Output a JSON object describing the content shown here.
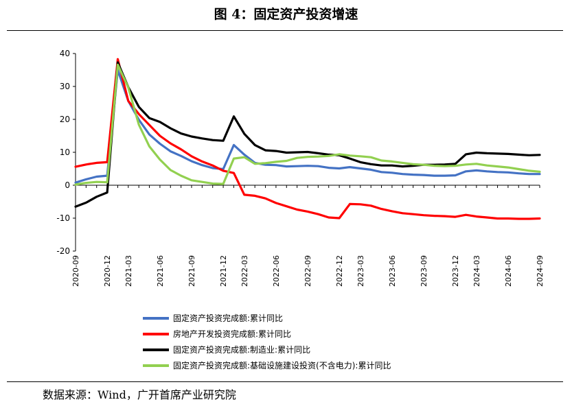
{
  "title": "图 4：固定资产投资增速",
  "source": "数据来源：Wind，广开首席产业研究院",
  "chart_data": {
    "type": "line",
    "title": "图 4：固定资产投资增速",
    "xlabel": "",
    "ylabel": "",
    "ylim": [
      -20,
      40
    ],
    "yticks": [
      -20,
      -10,
      0,
      10,
      20,
      30,
      40
    ],
    "grid": false,
    "legend_position": "bottom",
    "x": [
      "2020-09",
      "2020-10",
      "2020-11",
      "2020-12",
      "2021-02",
      "2021-03",
      "2021-04",
      "2021-05",
      "2021-06",
      "2021-07",
      "2021-08",
      "2021-09",
      "2021-10",
      "2021-11",
      "2021-12",
      "2022-02",
      "2022-03",
      "2022-04",
      "2022-05",
      "2022-06",
      "2022-07",
      "2022-08",
      "2022-09",
      "2022-10",
      "2022-11",
      "2022-12",
      "2023-02",
      "2023-03",
      "2023-04",
      "2023-05",
      "2023-06",
      "2023-07",
      "2023-08",
      "2023-09",
      "2023-10",
      "2023-11",
      "2023-12",
      "2024-02",
      "2024-03",
      "2024-04",
      "2024-05",
      "2024-06",
      "2024-07",
      "2024-08",
      "2024-09"
    ],
    "xtick_labels": [
      "2020-09",
      "2020-12",
      "2021-03",
      "2021-06",
      "2021-09",
      "2021-12",
      "2022-03",
      "2022-06",
      "2022-09",
      "2022-12",
      "2023-03",
      "2023-06",
      "2023-09",
      "2023-12",
      "2024-03",
      "2024-06",
      "2024-09"
    ],
    "series": [
      {
        "name": "固定资产投资完成额:累计同比",
        "color": "#4472C4",
        "values": [
          0.8,
          1.8,
          2.6,
          2.9,
          35.0,
          25.6,
          19.9,
          15.4,
          12.6,
          10.3,
          8.9,
          7.3,
          6.1,
          5.2,
          4.9,
          12.2,
          9.3,
          6.8,
          6.2,
          6.1,
          5.7,
          5.8,
          5.9,
          5.8,
          5.3,
          5.1,
          5.5,
          5.1,
          4.7,
          4.0,
          3.8,
          3.4,
          3.2,
          3.1,
          2.9,
          2.9,
          3.0,
          4.2,
          4.5,
          4.2,
          4.0,
          3.9,
          3.6,
          3.4,
          3.4
        ]
      },
      {
        "name": "房地产开发投资完成额:累计同比",
        "color": "#FF0000",
        "values": [
          5.6,
          6.3,
          6.8,
          7.0,
          38.3,
          25.6,
          21.6,
          18.3,
          15.0,
          12.7,
          10.9,
          8.8,
          7.2,
          6.0,
          4.4,
          3.7,
          -2.9,
          -3.2,
          -4.0,
          -5.4,
          -6.4,
          -7.4,
          -8.0,
          -8.8,
          -9.8,
          -10.0,
          -5.7,
          -5.8,
          -6.2,
          -7.2,
          -7.9,
          -8.5,
          -8.8,
          -9.1,
          -9.3,
          -9.4,
          -9.6,
          -9.0,
          -9.5,
          -9.8,
          -10.1,
          -10.1,
          -10.2,
          -10.2,
          -10.1
        ]
      },
      {
        "name": "固定资产投资完成额:制造业:累计同比",
        "color": "#000000",
        "values": [
          -6.5,
          -5.3,
          -3.5,
          -2.2,
          37.3,
          29.8,
          23.8,
          20.4,
          19.2,
          17.3,
          15.7,
          14.8,
          14.2,
          13.7,
          13.5,
          20.9,
          15.6,
          12.2,
          10.6,
          10.4,
          9.9,
          10.0,
          10.1,
          9.7,
          9.3,
          9.1,
          8.1,
          7.0,
          6.4,
          6.0,
          6.0,
          5.7,
          5.9,
          6.2,
          6.2,
          6.3,
          6.5,
          9.4,
          9.9,
          9.7,
          9.6,
          9.5,
          9.3,
          9.1,
          9.2
        ]
      },
      {
        "name": "固定资产投资完成额:基础设施建设投资(不含电力):累计同比",
        "color": "#92D050",
        "values": [
          0.2,
          0.7,
          1.0,
          0.9,
          36.6,
          29.7,
          18.4,
          11.8,
          7.8,
          4.6,
          2.9,
          1.5,
          1.0,
          0.5,
          0.4,
          8.1,
          8.5,
          6.5,
          6.7,
          7.1,
          7.4,
          8.3,
          8.6,
          8.7,
          8.9,
          9.4,
          9.0,
          8.8,
          8.5,
          7.5,
          7.2,
          6.8,
          6.4,
          6.2,
          5.9,
          5.8,
          5.9,
          6.3,
          6.5,
          6.0,
          5.7,
          5.4,
          4.9,
          4.4,
          4.1
        ]
      }
    ]
  }
}
